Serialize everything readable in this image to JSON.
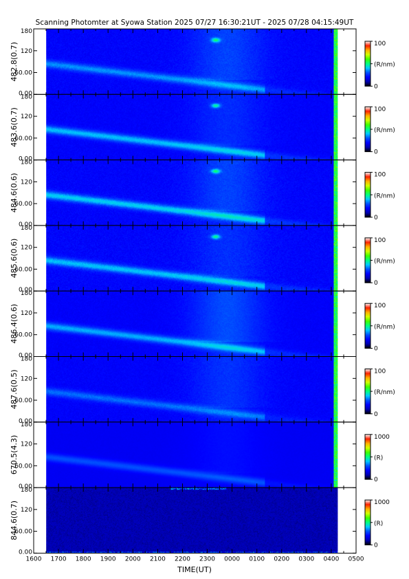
{
  "chart_data": {
    "type": "heatmap",
    "title": "Scanning Photomter at Syowa Station  2025 07/27 16:30:21UT - 2025 07/28 04:15:49UT",
    "xlabel": "TIME(UT)",
    "x_tick_labels": [
      "1600",
      "1700",
      "1800",
      "1900",
      "2000",
      "2100",
      "2200",
      "2300",
      "0000",
      "0100",
      "0200",
      "0300",
      "0400",
      "0500"
    ],
    "x_ticks_hours": [
      16,
      17,
      18,
      19,
      20,
      21,
      22,
      23,
      24,
      25,
      26,
      27,
      28,
      29
    ],
    "xlim_hours": [
      16,
      29
    ],
    "data_range_hours": [
      16.505,
      28.264
    ],
    "y_tick_labels": [
      "0.00",
      "60.00",
      "120",
      "180"
    ],
    "y_ticks": [
      0,
      60,
      120,
      180
    ],
    "ylim": [
      0,
      180
    ],
    "panels": [
      {
        "ylabel": "482.8(0.7)",
        "cbar_unit": "(R/nm)",
        "cbar_max": "100",
        "cbar_min": "0",
        "arc_level": 0.55,
        "late_level": 0.45,
        "noise": 0.35
      },
      {
        "ylabel": "483.6(0.7)",
        "cbar_unit": "(R/nm)",
        "cbar_max": "100",
        "cbar_min": "0",
        "arc_level": 0.7,
        "late_level": 0.3,
        "noise": 0.3
      },
      {
        "ylabel": "484.6(0.6)",
        "cbar_unit": "(R/nm)",
        "cbar_max": "100",
        "cbar_min": "0",
        "arc_level": 0.75,
        "late_level": 0.45,
        "noise": 0.35
      },
      {
        "ylabel": "485.6(0.6)",
        "cbar_unit": "(R/nm)",
        "cbar_max": "100",
        "cbar_min": "0",
        "arc_level": 0.7,
        "late_level": 0.3,
        "noise": 0.38
      },
      {
        "ylabel": "486.4(0.6)",
        "cbar_unit": "(R/nm)",
        "cbar_max": "100",
        "cbar_min": "0",
        "arc_level": 0.65,
        "late_level": 0.55,
        "noise": 0.25
      },
      {
        "ylabel": "487.6(0.5)",
        "cbar_unit": "(R/nm)",
        "cbar_max": "100",
        "cbar_min": "0",
        "arc_level": 0.45,
        "late_level": 0.35,
        "noise": 0.3
      },
      {
        "ylabel": "670.5(4.3)",
        "cbar_unit": "(R)",
        "cbar_max": "1000",
        "cbar_min": "0",
        "arc_level": 0.4,
        "late_level": 0.15,
        "noise": 0.1
      },
      {
        "ylabel": "844.6(0.7)",
        "cbar_unit": "(R)",
        "cbar_max": "1000",
        "cbar_min": "0",
        "arc_level": 0.1,
        "late_level": 0.05,
        "noise": 0.12
      }
    ],
    "colormap": [
      "#000000",
      "#0000b0",
      "#0000ff",
      "#0050ff",
      "#00c8ff",
      "#00ff80",
      "#40ff00",
      "#d0ff00",
      "#ffb000",
      "#ff2000",
      "#ffffff"
    ],
    "grid": false
  }
}
